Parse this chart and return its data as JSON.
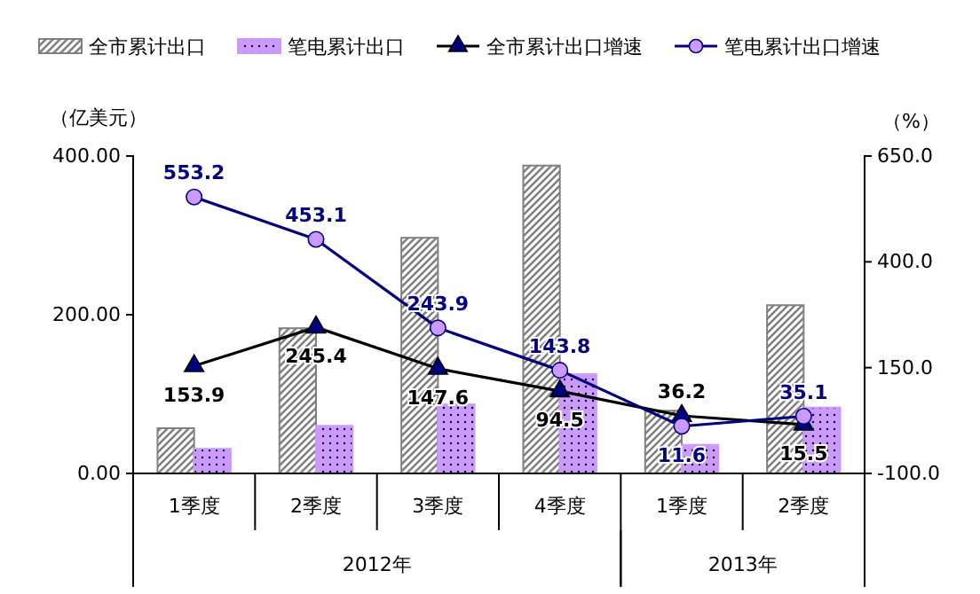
{
  "chart_data": {
    "type": "bar",
    "categories": [
      "1季度",
      "2季度",
      "3季度",
      "4季度",
      "1季度",
      "2季度"
    ],
    "ylabel": "（亿美元）",
    "y2label": "（%）",
    "annotations": [
      "2012年",
      "2013年"
    ],
    "series": [
      {
        "name": "全市累计出口",
        "color": "#808080",
        "values": [
          57,
          183,
          297,
          388,
          79,
          212
        ]
      },
      {
        "name": "笔电累计出口",
        "color": "#cc99ff",
        "values": [
          31,
          60,
          87,
          125,
          36,
          83
        ]
      },
      {
        "name": "全市累计出口增速",
        "type": "line",
        "axis": "y2",
        "color": "#000000",
        "marker": "triangle",
        "values": [
          153.9,
          245.4,
          147.6,
          94.5,
          36.2,
          15.5
        ],
        "value_labels": [
          "153.9",
          "245.4",
          "147.6",
          "94.5",
          "36.2",
          "15.5"
        ]
      },
      {
        "name": "笔电累计出口增速",
        "type": "line",
        "axis": "y2",
        "color": "#000080",
        "marker": "circle",
        "values": [
          553.2,
          453.1,
          243.9,
          143.8,
          11.6,
          35.1
        ],
        "value_labels": [
          "553.2",
          "453.1",
          "243.9",
          "143.8",
          "11.6",
          "35.1"
        ]
      }
    ],
    "ylim": [
      0,
      400
    ],
    "yticks": [
      {
        "value": 0,
        "label": "0.00"
      },
      {
        "value": 200,
        "label": "200.00"
      },
      {
        "value": 400,
        "label": "400.00"
      }
    ],
    "y2lim": [
      -100,
      650
    ],
    "y2ticks": [
      {
        "value": -100,
        "label": "-100.0"
      },
      {
        "value": 150,
        "label": "150.0"
      },
      {
        "value": 400,
        "label": "400.0"
      },
      {
        "value": 650,
        "label": "650.0"
      }
    ],
    "legend": "top",
    "grid": false
  }
}
